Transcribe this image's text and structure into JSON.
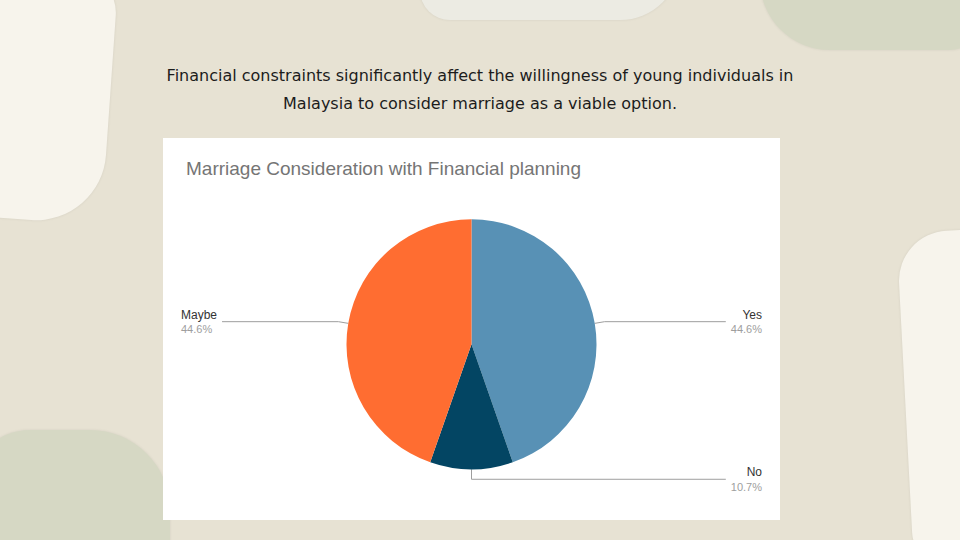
{
  "heading": "Financial constraints significantly affect the willingness of young individuals in Malaysia to consider marriage as a viable option.",
  "chart_data": {
    "type": "pie",
    "title": "Marriage Consideration with Financial planning",
    "categories": [
      "Yes",
      "No",
      "Maybe"
    ],
    "values": [
      44.6,
      10.7,
      44.6
    ],
    "value_labels": [
      "44.6%",
      "10.7%",
      "44.6%"
    ],
    "colors": [
      "#5891b5",
      "#034563",
      "#ff6d31"
    ],
    "data_labels": true
  }
}
